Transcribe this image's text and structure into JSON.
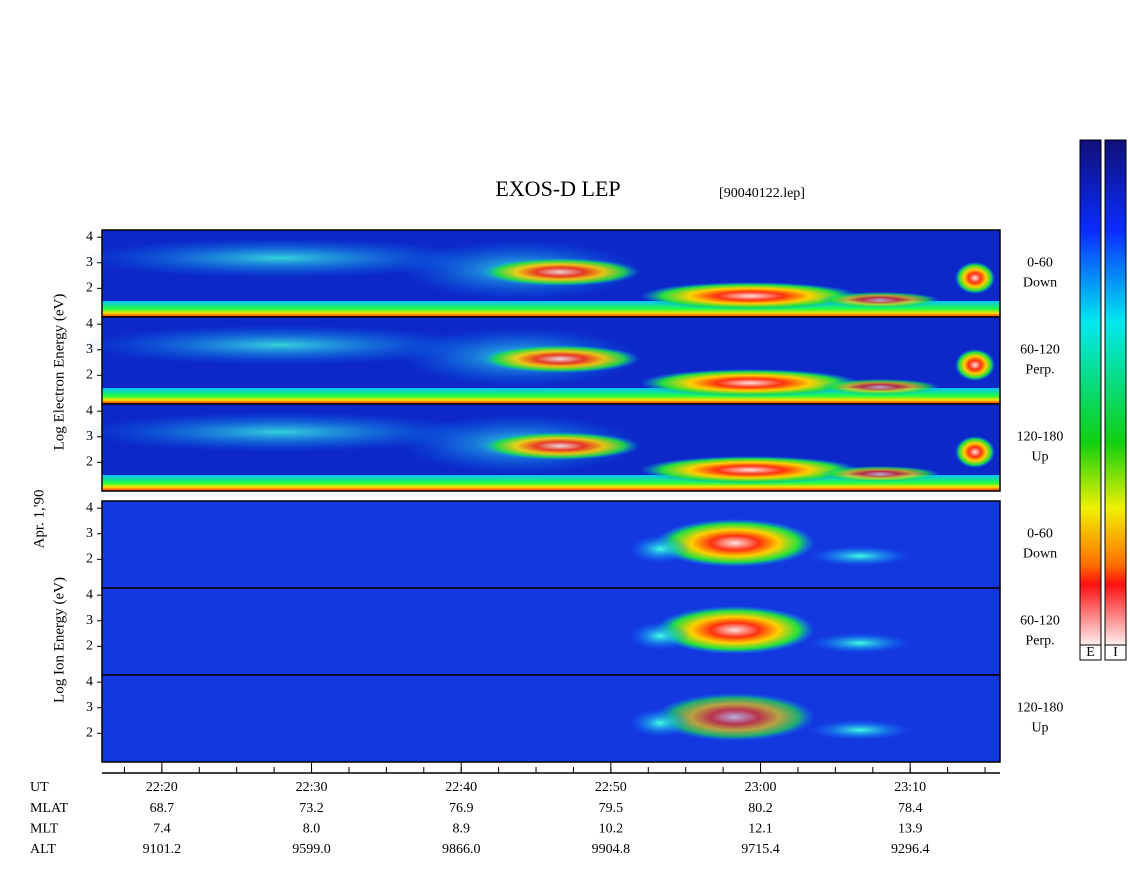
{
  "chart_data": {
    "type": "spectrogram",
    "title": "EXOS-D LEP",
    "file": "[90040122.lep]",
    "date": "Apr. 1,'90",
    "xlim": [
      "22:16",
      "23:16"
    ],
    "xticks": [
      "22:20",
      "22:30",
      "22:40",
      "22:50",
      "23:00",
      "23:10"
    ],
    "xlabel": "UT",
    "ylim": [
      0.88,
      4.28
    ],
    "yticks": [
      2,
      3,
      4
    ],
    "panels": [
      {
        "ylabel": "Log Electron Energy (eV)",
        "subpanels": [
          {
            "pitch": "0-60",
            "direction": "Down"
          },
          {
            "pitch": "60-120",
            "direction": "Perp."
          },
          {
            "pitch": "120-180",
            "direction": "Up"
          }
        ]
      },
      {
        "ylabel": "Log Ion Energy (eV)",
        "subpanels": [
          {
            "pitch": "0-60",
            "direction": "Down"
          },
          {
            "pitch": "60-120",
            "direction": "Perp."
          },
          {
            "pitch": "120-180",
            "direction": "Up"
          }
        ]
      }
    ],
    "ephemeris": [
      {
        "name": "MLAT",
        "values": [
          "68.7",
          "73.2",
          "76.9",
          "79.5",
          "80.2",
          "78.4"
        ]
      },
      {
        "name": "MLT",
        "values": [
          "7.4",
          "8.0",
          "8.9",
          "10.2",
          "12.1",
          "13.9"
        ]
      },
      {
        "name": "ALT",
        "values": [
          "9101.2",
          "9599.0",
          "9866.0",
          "9904.8",
          "9715.4",
          "9296.4"
        ]
      }
    ],
    "colorbars": [
      "E",
      "I"
    ]
  }
}
